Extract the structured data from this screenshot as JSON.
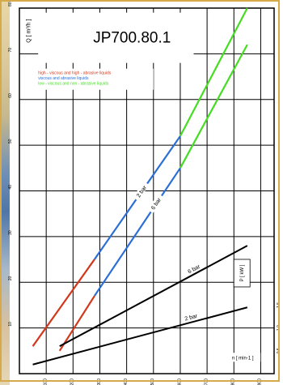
{
  "chart_data": {
    "type": "line",
    "title": "JP700.80.1",
    "q_axis": {
      "label": "Q [ m³/h ]",
      "ticks": [
        10,
        20,
        30,
        40,
        50,
        60,
        70,
        80
      ],
      "range": [
        0,
        80
      ]
    },
    "p_axis": {
      "label": "P [ kW ]",
      "ticks": [
        0.5,
        1.0,
        1.5
      ],
      "range": [
        0,
        8
      ]
    },
    "x_axis": {
      "label": "n [ min-1 ]",
      "ticks": [
        100,
        200,
        300,
        400,
        500,
        600,
        700,
        800,
        900
      ],
      "range": [
        0,
        950
      ]
    },
    "legend": [
      {
        "text": "high - viscous and high - abrasive liquids",
        "color": "#d2381c"
      },
      {
        "text": "viscous and abrasive liquids",
        "color": "#2b6fd6"
      },
      {
        "text": "low - viscous and non - abrasive liquids",
        "color": "#44dd22"
      }
    ],
    "q_series": [
      {
        "name": "2 bar",
        "segments": [
          {
            "color": "#d2381c",
            "x": [
              50,
              280
            ],
            "y": [
              6,
              25
            ]
          },
          {
            "color": "#2b6fd6",
            "x": [
              280,
              600
            ],
            "y": [
              25,
              52
            ]
          },
          {
            "color": "#44dd22",
            "x": [
              600,
              850
            ],
            "y": [
              52,
              80
            ]
          }
        ]
      },
      {
        "name": "6 bar",
        "segments": [
          {
            "color": "#d2381c",
            "x": [
              150,
              280
            ],
            "y": [
              5,
              17
            ]
          },
          {
            "color": "#2b6fd6",
            "x": [
              280,
              600
            ],
            "y": [
              17,
              45
            ]
          },
          {
            "color": "#44dd22",
            "x": [
              600,
              850
            ],
            "y": [
              45,
              72
            ]
          }
        ]
      }
    ],
    "p_series": [
      {
        "name": "6 bar",
        "color": "#000000",
        "x": [
          150,
          850
        ],
        "y": [
          0.6,
          2.8
        ]
      },
      {
        "name": "2 bar",
        "color": "#000000",
        "x": [
          50,
          850
        ],
        "y": [
          0.2,
          1.45
        ]
      }
    ],
    "annotations": {
      "q_2bar": "2 bar",
      "q_6bar": "6 bar",
      "p_6bar": "6 bar",
      "p_2bar": "2 bar"
    },
    "grid": true
  }
}
